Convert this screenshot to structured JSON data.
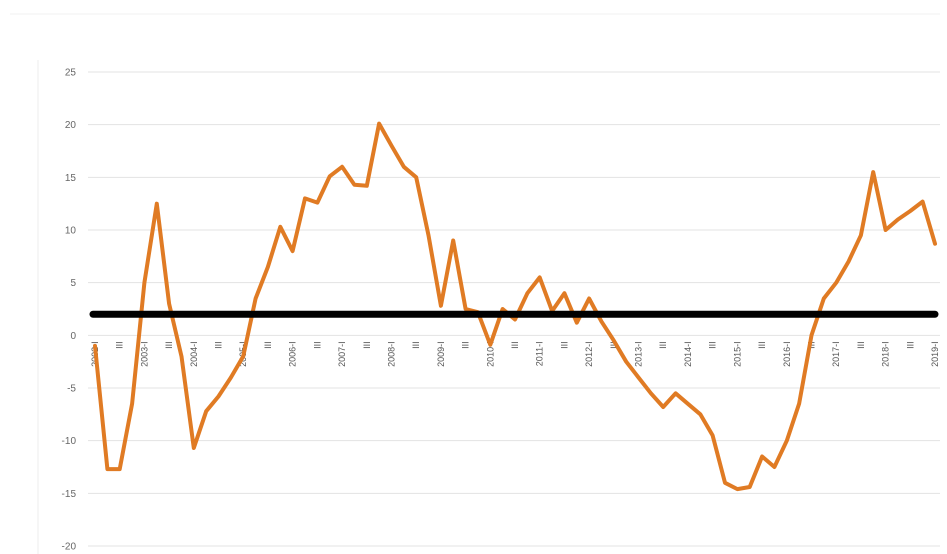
{
  "chart_data": {
    "type": "line",
    "title": "",
    "xlabel": "",
    "ylabel": "",
    "ylim": [
      -20,
      25
    ],
    "y_ticks": [
      25,
      20,
      15,
      10,
      5,
      0,
      -5,
      -10,
      -15,
      -20
    ],
    "grid": "horizontal",
    "x_tick_labels": [
      "2002-I",
      "III",
      "2003-I",
      "III",
      "2004-I",
      "III",
      "2005-I",
      "III",
      "2006-I",
      "III",
      "2007-I",
      "III",
      "2008-I",
      "III",
      "2009-I",
      "III",
      "2010-I",
      "III",
      "2011-I",
      "III",
      "2012-I",
      "III",
      "2013-I",
      "III",
      "2014-I",
      "III",
      "2015-I",
      "III",
      "2016-I",
      "III",
      "2017-I",
      "III",
      "2018-I",
      "III",
      "2019-I"
    ],
    "x": [
      "2002-I",
      "2002-II",
      "2002-III",
      "2002-IV",
      "2003-I",
      "2003-II",
      "2003-III",
      "2003-IV",
      "2004-I",
      "2004-II",
      "2004-III",
      "2004-IV",
      "2005-I",
      "2005-II",
      "2005-III",
      "2005-IV",
      "2006-I",
      "2006-II",
      "2006-III",
      "2006-IV",
      "2007-I",
      "2007-II",
      "2007-III",
      "2007-IV",
      "2008-I",
      "2008-II",
      "2008-III",
      "2008-IV",
      "2009-I",
      "2009-II",
      "2009-III",
      "2009-IV",
      "2010-I",
      "2010-II",
      "2010-III",
      "2010-IV",
      "2011-I",
      "2011-II",
      "2011-III",
      "2011-IV",
      "2012-I",
      "2012-II",
      "2012-III",
      "2012-IV",
      "2013-I",
      "2013-II",
      "2013-III",
      "2013-IV",
      "2014-I",
      "2014-II",
      "2014-III",
      "2014-IV",
      "2015-I",
      "2015-II",
      "2015-III",
      "2015-IV",
      "2016-I",
      "2016-II",
      "2016-III",
      "2016-IV",
      "2017-I",
      "2017-II",
      "2017-III",
      "2017-IV",
      "2018-I",
      "2018-II",
      "2018-III",
      "2018-IV",
      "2019-I"
    ],
    "series": [
      {
        "color": "#E07B24",
        "values": [
          -1.0,
          -12.7,
          -12.7,
          -6.5,
          5.0,
          12.5,
          3.0,
          -2.0,
          -10.7,
          -7.2,
          -5.8,
          -4.0,
          -2.0,
          3.5,
          6.5,
          10.3,
          8.0,
          13.0,
          12.6,
          15.1,
          16.0,
          14.3,
          14.2,
          20.1,
          18.0,
          16.0,
          15.0,
          9.5,
          2.8,
          9.0,
          2.5,
          2.2,
          -0.9,
          2.5,
          1.5,
          4.0,
          5.5,
          2.3,
          4.0,
          1.2,
          3.5,
          1.3,
          -0.5,
          -2.5,
          -4.0,
          -5.5,
          -6.8,
          -5.5,
          -6.5,
          -7.5,
          -9.5,
          -14.0,
          -14.6,
          -14.4,
          -11.5,
          -12.5,
          -10.0,
          -6.5,
          0.0,
          3.5,
          5.0,
          7.0,
          9.5,
          15.5,
          10.0,
          11.0,
          11.8,
          12.7,
          8.7
        ]
      }
    ],
    "reference_line": {
      "value": 2,
      "color": "#000000"
    }
  }
}
